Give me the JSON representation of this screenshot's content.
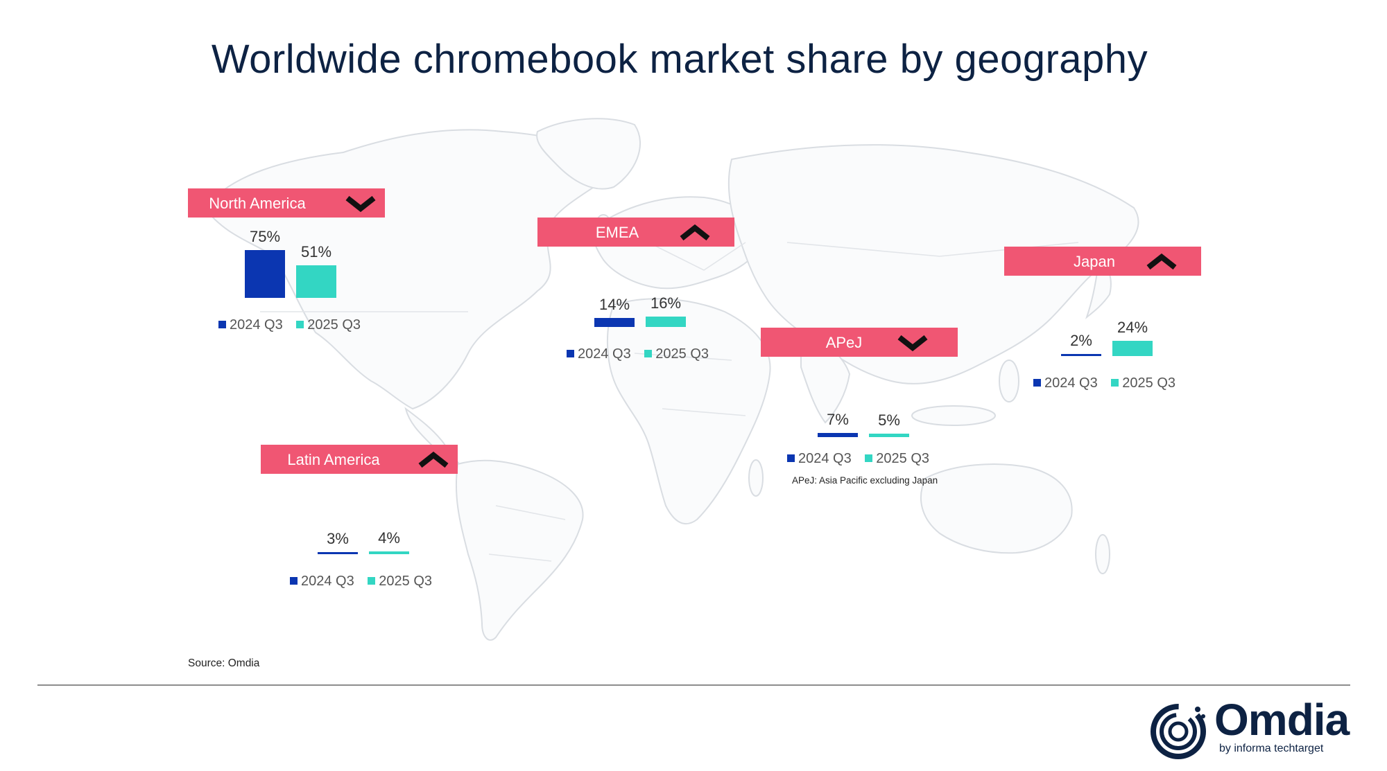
{
  "title": "Worldwide chromebook market share by geography",
  "legend_labels": [
    "2024 Q3",
    "2025 Q3"
  ],
  "colors": {
    "series_2024": "#0b36b1",
    "series_2025": "#33d6c3",
    "banner": "#f05673",
    "title": "#0d2243"
  },
  "chart_data": [
    {
      "type": "bar",
      "title": "North America",
      "trend": "down",
      "categories": [
        "2024 Q3",
        "2025 Q3"
      ],
      "values": [
        75,
        51
      ],
      "labels": [
        "75%",
        "51%"
      ],
      "unit": "%"
    },
    {
      "type": "bar",
      "title": "EMEA",
      "trend": "up",
      "categories": [
        "2024 Q3",
        "2025 Q3"
      ],
      "values": [
        14,
        16
      ],
      "labels": [
        "14%",
        "16%"
      ],
      "unit": "%"
    },
    {
      "type": "bar",
      "title": "Japan",
      "trend": "up",
      "categories": [
        "2024 Q3",
        "2025 Q3"
      ],
      "values": [
        2,
        24
      ],
      "labels": [
        "2%",
        "24%"
      ],
      "unit": "%"
    },
    {
      "type": "bar",
      "title": "APeJ",
      "trend": "down",
      "categories": [
        "2024 Q3",
        "2025 Q3"
      ],
      "values": [
        7,
        5
      ],
      "labels": [
        "7%",
        "5%"
      ],
      "unit": "%"
    },
    {
      "type": "bar",
      "title": "Latin America",
      "trend": "up",
      "categories": [
        "2024 Q3",
        "2025 Q3"
      ],
      "values": [
        3,
        4
      ],
      "labels": [
        "3%",
        "4%"
      ],
      "unit": "%"
    }
  ],
  "footnote": "APeJ: Asia Pacific excluding Japan",
  "source": "Source: Omdia",
  "logo": {
    "name": "Omdia",
    "tagline": "by informa techtarget"
  }
}
